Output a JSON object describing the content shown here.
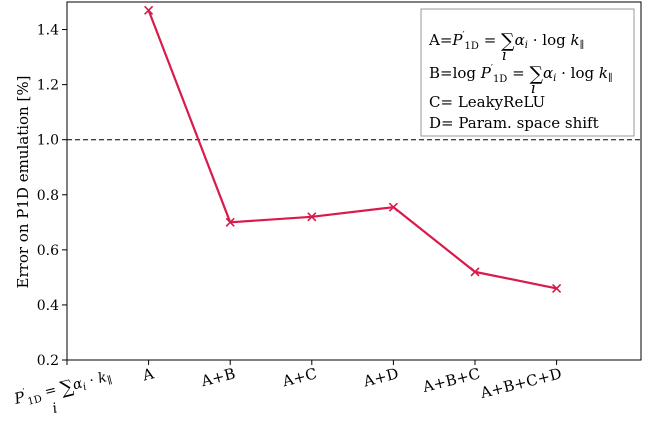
{
  "chart_data": {
    "type": "line",
    "ylabel": "Error on P1D emulation [%]",
    "xlabel": "",
    "ylim": [
      0.2,
      1.5
    ],
    "yticks": [
      0.2,
      0.4,
      0.6,
      0.8,
      1.0,
      1.2,
      1.4
    ],
    "ytick_labels": [
      "0.2",
      "0.4",
      "0.6",
      "0.8",
      "1.0",
      "1.2",
      "1.4"
    ],
    "categories": [
      "P'1D = Σi αi · k∥",
      "A",
      "A+B",
      "A+C",
      "A+D",
      "A+B+C",
      "A+B+C+D"
    ],
    "series": [
      {
        "color": "#d81b4a",
        "marker": "x",
        "x": [
          "A",
          "A+B",
          "A+C",
          "A+D",
          "A+B+C",
          "A+B+C+D"
        ],
        "values": [
          1.47,
          0.7,
          0.72,
          0.755,
          0.52,
          0.46
        ]
      }
    ],
    "reference_line": {
      "y": 1.0,
      "style": "dashed",
      "color": "#000000"
    },
    "legend_notes": [
      "A=P'1D = Σi αi · log k∥",
      "B=log P'1D = Σi αi · log k∥",
      "C= LeakyReLU",
      "D= Param. space shift"
    ],
    "legend_placement": "top-right",
    "grid": false
  }
}
